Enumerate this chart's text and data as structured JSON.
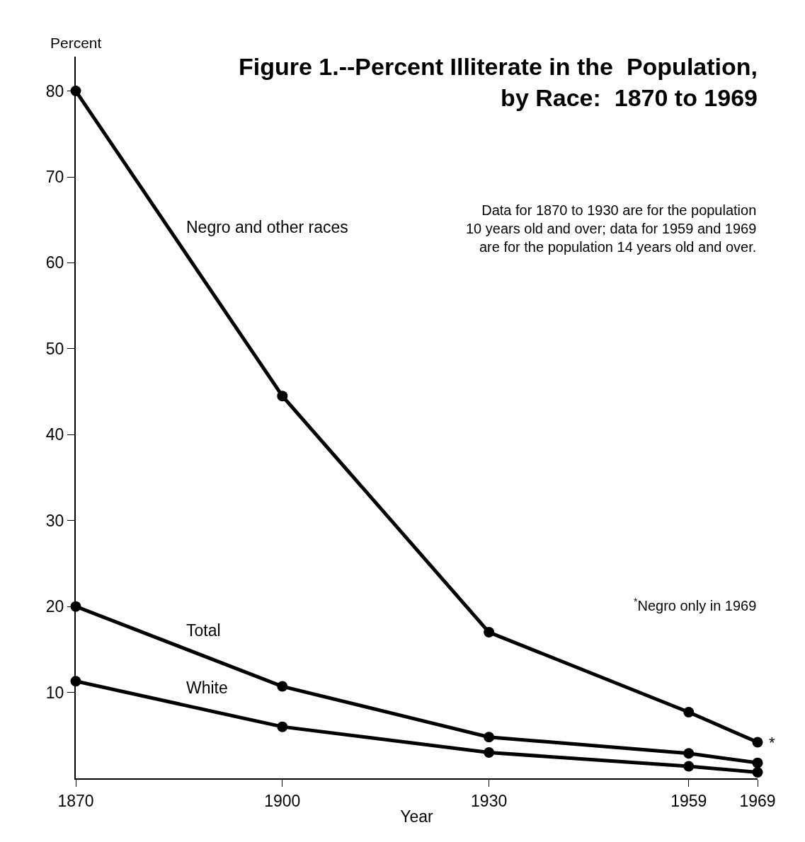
{
  "chart_data": {
    "type": "line",
    "title": "Figure 1.--Percent Illiterate in the  Population,\nby Race:  1870 to 1969",
    "xlabel": "Year",
    "ylabel": "Percent",
    "x": [
      1870,
      1900,
      1930,
      1959,
      1969
    ],
    "series": [
      {
        "name": "Negro and other races",
        "color": "#000000",
        "values": [
          80,
          44.5,
          17.0,
          7.7,
          4.2
        ]
      },
      {
        "name": "Total",
        "color": "#000000",
        "values": [
          20.0,
          10.7,
          4.8,
          2.9,
          1.8
        ]
      },
      {
        "name": "White",
        "color": "#000000",
        "values": [
          11.3,
          6.0,
          3.0,
          1.4,
          0.7
        ]
      }
    ],
    "annotations": [
      "Data for 1870 to 1930 are for the population\n10 years old and over; data for 1959 and 1969\nare for the population 14 years old and over.",
      "$^{*}$Negro only in 1969",
      {
        "text": "*",
        "x": 1969,
        "y": 4.2
      }
    ],
    "xlim": [
      1870,
      1969
    ],
    "xticks": [
      1870,
      1900,
      1930,
      1959,
      1969
    ],
    "ylim": [
      0,
      84
    ],
    "yticks": [
      10,
      20,
      30,
      40,
      50,
      60,
      70,
      80
    ],
    "legend": false,
    "marker": "circle",
    "line_style": "solid"
  }
}
